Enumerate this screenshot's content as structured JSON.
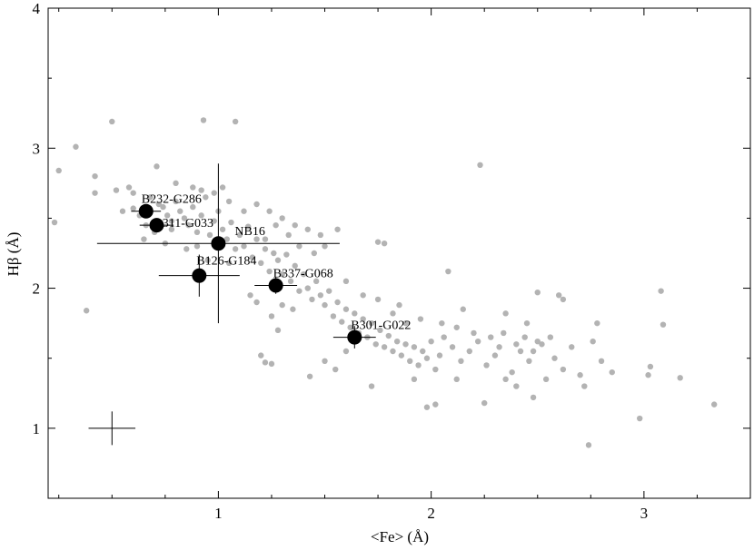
{
  "chart_data": {
    "type": "scatter",
    "title": "",
    "xlabel": "<Fe>  (Å)",
    "ylabel": "Hβ (Å)",
    "xlim": [
      0.2,
      3.5
    ],
    "ylim": [
      0.5,
      4.0
    ],
    "grid": false,
    "x_ticks": [
      1,
      2,
      3
    ],
    "y_ticks": [
      1,
      2,
      3,
      4
    ],
    "x_tick_labels": [
      "1",
      "2",
      "3"
    ],
    "y_tick_labels": [
      "1",
      "2",
      "3",
      "4"
    ],
    "colors": {
      "background_points": "#b3b3b3",
      "highlighted_points": "#000000",
      "error_bars": "#000000"
    },
    "background_points": [
      [
        0.33,
        3.01
      ],
      [
        0.42,
        2.8
      ],
      [
        0.42,
        2.68
      ],
      [
        0.5,
        3.19
      ],
      [
        0.52,
        2.7
      ],
      [
        0.25,
        2.84
      ],
      [
        0.23,
        2.47
      ],
      [
        0.38,
        1.84
      ],
      [
        0.58,
        2.72
      ],
      [
        0.6,
        2.57
      ],
      [
        0.63,
        2.52
      ],
      [
        0.68,
        2.65
      ],
      [
        0.72,
        2.6
      ],
      [
        0.74,
        2.58
      ],
      [
        0.76,
        2.52
      ],
      [
        0.78,
        2.48
      ],
      [
        0.8,
        2.62
      ],
      [
        0.82,
        2.55
      ],
      [
        0.84,
        2.5
      ],
      [
        0.86,
        2.45
      ],
      [
        0.88,
        2.58
      ],
      [
        0.9,
        2.4
      ],
      [
        0.92,
        2.52
      ],
      [
        0.94,
        2.65
      ],
      [
        0.96,
        2.38
      ],
      [
        0.98,
        2.48
      ],
      [
        1.0,
        2.55
      ],
      [
        1.02,
        2.42
      ],
      [
        1.04,
        2.35
      ],
      [
        1.06,
        2.47
      ],
      [
        1.08,
        2.28
      ],
      [
        1.1,
        2.38
      ],
      [
        1.12,
        2.3
      ],
      [
        1.14,
        2.44
      ],
      [
        1.16,
        2.22
      ],
      [
        1.18,
        2.35
      ],
      [
        1.2,
        2.18
      ],
      [
        1.22,
        2.28
      ],
      [
        1.24,
        2.12
      ],
      [
        1.26,
        2.25
      ],
      [
        1.28,
        2.2
      ],
      [
        1.3,
        2.1
      ],
      [
        1.32,
        2.24
      ],
      [
        1.34,
        2.05
      ],
      [
        1.36,
        2.16
      ],
      [
        1.38,
        1.98
      ],
      [
        1.4,
        2.1
      ],
      [
        1.42,
        2.0
      ],
      [
        1.44,
        1.92
      ],
      [
        1.46,
        2.05
      ],
      [
        1.48,
        1.95
      ],
      [
        1.5,
        1.88
      ],
      [
        1.52,
        1.98
      ],
      [
        1.54,
        1.8
      ],
      [
        1.56,
        1.9
      ],
      [
        1.58,
        1.76
      ],
      [
        1.6,
        1.85
      ],
      [
        1.62,
        1.72
      ],
      [
        1.64,
        1.82
      ],
      [
        1.66,
        1.68
      ],
      [
        1.68,
        1.78
      ],
      [
        1.7,
        1.65
      ],
      [
        1.72,
        1.75
      ],
      [
        1.74,
        1.6
      ],
      [
        1.76,
        1.7
      ],
      [
        1.78,
        1.58
      ],
      [
        1.8,
        1.66
      ],
      [
        1.82,
        1.55
      ],
      [
        1.84,
        1.62
      ],
      [
        1.86,
        1.52
      ],
      [
        1.88,
        1.6
      ],
      [
        1.9,
        1.48
      ],
      [
        1.92,
        1.58
      ],
      [
        1.94,
        1.45
      ],
      [
        1.96,
        1.55
      ],
      [
        1.98,
        1.5
      ],
      [
        2.0,
        1.62
      ],
      [
        2.02,
        1.42
      ],
      [
        2.04,
        1.52
      ],
      [
        2.06,
        1.65
      ],
      [
        2.1,
        1.58
      ],
      [
        2.14,
        1.48
      ],
      [
        2.18,
        1.55
      ],
      [
        2.22,
        1.62
      ],
      [
        2.26,
        1.45
      ],
      [
        2.3,
        1.52
      ],
      [
        2.34,
        1.68
      ],
      [
        2.38,
        1.4
      ],
      [
        2.42,
        1.55
      ],
      [
        2.46,
        1.48
      ],
      [
        2.5,
        1.62
      ],
      [
        2.54,
        1.35
      ],
      [
        2.58,
        1.5
      ],
      [
        2.62,
        1.42
      ],
      [
        2.66,
        1.58
      ],
      [
        2.7,
        1.38
      ],
      [
        2.76,
        1.62
      ],
      [
        2.8,
        1.48
      ],
      [
        2.85,
        1.4
      ],
      [
        3.02,
        1.38
      ],
      [
        3.03,
        1.44
      ],
      [
        3.08,
        1.98
      ],
      [
        3.09,
        1.74
      ],
      [
        3.17,
        1.36
      ],
      [
        3.33,
        1.17
      ],
      [
        2.98,
        1.07
      ],
      [
        2.74,
        0.88
      ],
      [
        2.23,
        2.88
      ],
      [
        2.72,
        1.3
      ],
      [
        2.78,
        1.75
      ],
      [
        2.6,
        1.95
      ],
      [
        2.5,
        1.97
      ],
      [
        2.62,
        1.92
      ],
      [
        2.45,
        1.75
      ],
      [
        2.35,
        1.82
      ],
      [
        2.15,
        1.85
      ],
      [
        2.08,
        2.12
      ],
      [
        1.98,
        1.15
      ],
      [
        2.02,
        1.17
      ],
      [
        1.85,
        1.88
      ],
      [
        1.78,
        2.32
      ],
      [
        1.75,
        2.33
      ],
      [
        1.6,
        1.55
      ],
      [
        1.55,
        1.42
      ],
      [
        1.5,
        1.48
      ],
      [
        1.72,
        1.3
      ],
      [
        1.43,
        1.37
      ],
      [
        1.25,
        1.46
      ],
      [
        1.22,
        1.47
      ],
      [
        1.2,
        1.52
      ],
      [
        1.25,
        1.8
      ],
      [
        1.35,
        1.85
      ],
      [
        1.28,
        1.7
      ],
      [
        1.3,
        1.88
      ],
      [
        1.15,
        1.95
      ],
      [
        1.18,
        1.9
      ],
      [
        0.93,
        3.2
      ],
      [
        1.08,
        3.19
      ],
      [
        0.71,
        2.87
      ],
      [
        0.8,
        2.75
      ],
      [
        0.88,
        2.72
      ],
      [
        0.92,
        2.7
      ],
      [
        0.98,
        2.68
      ],
      [
        1.02,
        2.72
      ],
      [
        1.05,
        2.62
      ],
      [
        1.12,
        2.55
      ],
      [
        1.18,
        2.6
      ],
      [
        1.24,
        2.55
      ],
      [
        1.3,
        2.5
      ],
      [
        1.36,
        2.45
      ],
      [
        1.42,
        2.42
      ],
      [
        1.48,
        2.38
      ],
      [
        1.56,
        2.42
      ],
      [
        1.5,
        2.3
      ],
      [
        1.45,
        2.25
      ],
      [
        1.38,
        2.3
      ],
      [
        1.33,
        2.38
      ],
      [
        1.27,
        2.45
      ],
      [
        1.22,
        2.35
      ],
      [
        0.7,
        2.4
      ],
      [
        0.65,
        2.35
      ],
      [
        0.75,
        2.32
      ],
      [
        0.85,
        2.28
      ],
      [
        0.95,
        2.2
      ],
      [
        1.05,
        2.18
      ],
      [
        0.6,
        2.68
      ],
      [
        0.55,
        2.55
      ],
      [
        0.66,
        2.45
      ],
      [
        0.78,
        2.42
      ],
      [
        0.9,
        2.3
      ],
      [
        1.6,
        2.05
      ],
      [
        1.68,
        1.95
      ],
      [
        1.75,
        1.92
      ],
      [
        1.82,
        1.82
      ],
      [
        1.88,
        1.75
      ],
      [
        1.95,
        1.78
      ],
      [
        2.05,
        1.75
      ],
      [
        2.12,
        1.72
      ],
      [
        2.2,
        1.68
      ],
      [
        2.28,
        1.65
      ],
      [
        2.32,
        1.58
      ],
      [
        2.4,
        1.6
      ],
      [
        2.44,
        1.65
      ],
      [
        2.48,
        1.55
      ],
      [
        2.52,
        1.6
      ],
      [
        2.56,
        1.65
      ],
      [
        1.92,
        1.35
      ],
      [
        2.12,
        1.35
      ],
      [
        2.25,
        1.18
      ],
      [
        2.48,
        1.22
      ],
      [
        2.35,
        1.35
      ],
      [
        2.4,
        1.3
      ]
    ],
    "highlighted_points": [
      {
        "label": "B232-G286",
        "x": 0.66,
        "y": 2.55,
        "xerr": 0.07,
        "yerr": 0.04
      },
      {
        "label": "B311-G033",
        "x": 0.71,
        "y": 2.45,
        "xerr": 0.08,
        "yerr": 0.05
      },
      {
        "label": "NB16",
        "x": 1.0,
        "y": 2.32,
        "xerr": 0.57,
        "yerr": 0.57
      },
      {
        "label": "B126-G184",
        "x": 0.91,
        "y": 2.09,
        "xerr": 0.19,
        "yerr": 0.15
      },
      {
        "label": "B337-G068",
        "x": 1.27,
        "y": 2.02,
        "xerr": 0.1,
        "yerr": 0.06
      },
      {
        "label": "B301-G022",
        "x": 1.64,
        "y": 1.65,
        "xerr": 0.1,
        "yerr": 0.08
      }
    ],
    "typical_error": {
      "x": 0.5,
      "y": 1.0,
      "xerr": 0.11,
      "yerr": 0.12
    }
  }
}
